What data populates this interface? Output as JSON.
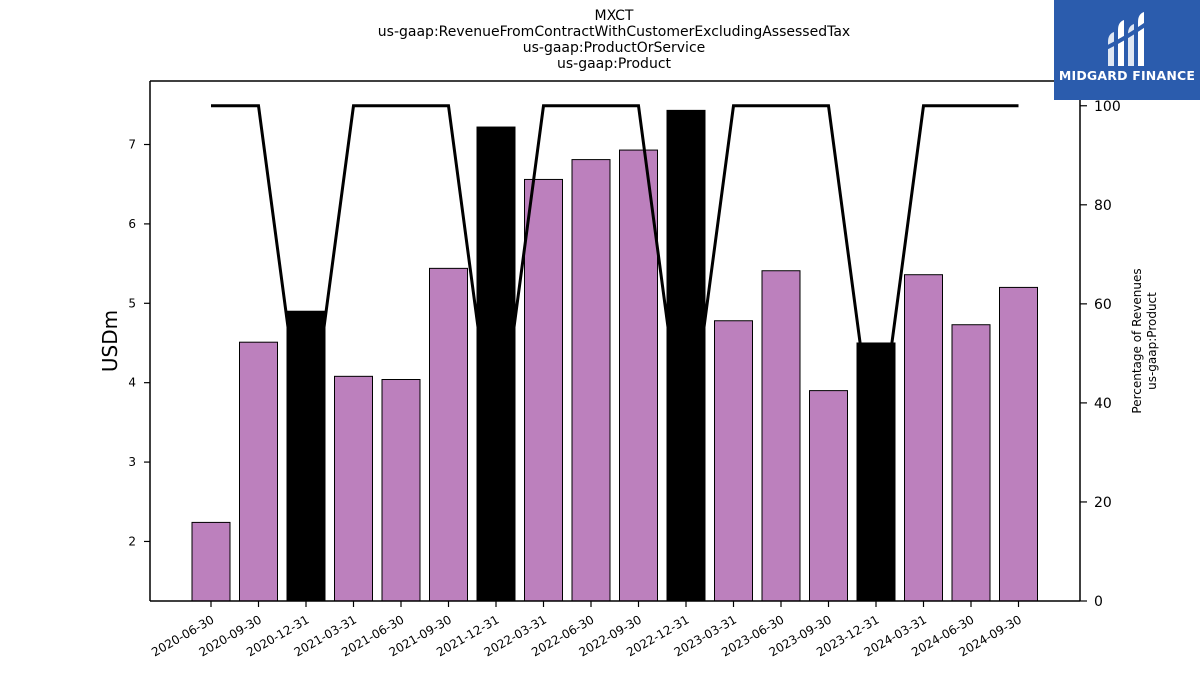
{
  "chart_data": {
    "type": "bar",
    "title": [
      "MXCT",
      "us-gaap:RevenueFromContractWithCustomerExcludingAssessedTax",
      "us-gaap:ProductOrService",
      "us-gaap:Product"
    ],
    "categories": [
      "2020-06-30",
      "2020-09-30",
      "2020-12-31",
      "2021-03-31",
      "2021-06-30",
      "2021-09-30",
      "2021-12-31",
      "2022-03-31",
      "2022-06-30",
      "2022-09-30",
      "2022-12-31",
      "2023-03-31",
      "2023-06-30",
      "2023-09-30",
      "2023-12-31",
      "2024-03-31",
      "2024-06-30",
      "2024-09-30"
    ],
    "series": [
      {
        "values": [
          2.24,
          4.51,
          4.9,
          4.08,
          4.04,
          5.44,
          7.22,
          6.56,
          6.81,
          6.93,
          7.43,
          4.78,
          5.41,
          3.9,
          4.5,
          5.36,
          4.73,
          5.2
        ],
        "bar_colors": [
          "#bc80bd",
          "#bc80bd",
          "#000000",
          "#bc80bd",
          "#bc80bd",
          "#bc80bd",
          "#000000",
          "#bc80bd",
          "#bc80bd",
          "#bc80bd",
          "#000000",
          "#bc80bd",
          "#bc80bd",
          "#bc80bd",
          "#000000",
          "#bc80bd",
          "#bc80bd",
          "#bc80bd"
        ]
      },
      {
        "axis": "right",
        "values": [
          100,
          100,
          28,
          100,
          100,
          100,
          28,
          100,
          100,
          100,
          28,
          100,
          100,
          100,
          28,
          100,
          100,
          100
        ],
        "color": "#000000"
      }
    ],
    "ylabel": "USDm",
    "y2label": [
      "Percentage of Revenues",
      "us-gaap:Product"
    ],
    "ylim": [
      1.25,
      7.8
    ],
    "y2lim": [
      0,
      105
    ],
    "yticks": [
      2,
      3,
      4,
      5,
      6,
      7
    ],
    "y2ticks": [
      0,
      20,
      40,
      60,
      80,
      100
    ],
    "grid": false
  },
  "logo": {
    "text": "MIDGARD FINANCE",
    "bg": "#2b5cad"
  }
}
